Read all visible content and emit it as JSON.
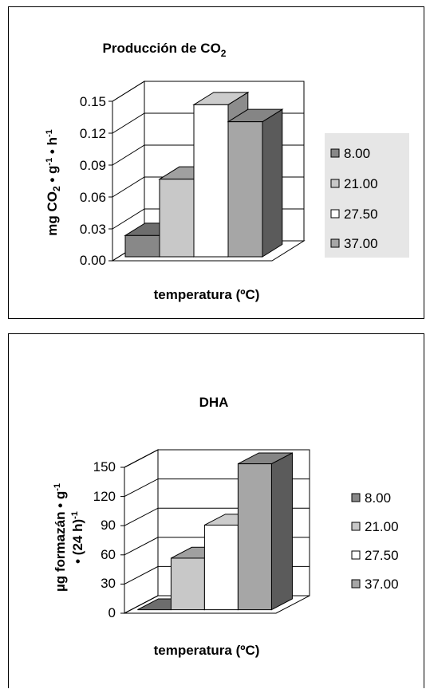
{
  "colors": {
    "c8": "#888888",
    "c21": "#c8c8c8",
    "c275": "#ffffff",
    "c37": "#a6a6a6",
    "legend_bg": "#e6e6e6"
  },
  "charts": [
    {
      "title_main": "Producción de CO",
      "title_sub": "2",
      "ylabel": {
        "a": "mg CO",
        "b": "2",
        "c": " • g",
        "d": "-1",
        "e": " • h",
        "f": "-1"
      },
      "xlabel": "temperatura (ºC)",
      "yticks": [
        "0.15",
        "0.12",
        "0.09",
        "0.06",
        "0.03",
        "0.00"
      ],
      "legend": [
        "8.00",
        "21.00",
        "27.50",
        "37.00"
      ]
    },
    {
      "title_main": "DHA",
      "ylabel": {
        "a": "µg formazán •   g",
        "b": "-1",
        "c": "• (24 h)",
        "d": "-1"
      },
      "xlabel": "temperatura (ºC)",
      "yticks": [
        "150",
        "120",
        "90",
        "60",
        "30",
        "0"
      ],
      "legend": [
        "8.00",
        "21.00",
        "27.50",
        "37.00"
      ]
    }
  ],
  "chart_data": [
    {
      "type": "bar",
      "title": "Producción de CO2",
      "xlabel": "temperatura (ºC)",
      "ylabel": "mg CO2 • g-1 • h-1",
      "ylim": [
        0,
        0.15
      ],
      "series": [
        {
          "name": "8.00",
          "values": [
            0.02
          ]
        },
        {
          "name": "21.00",
          "values": [
            0.073
          ]
        },
        {
          "name": "27.50",
          "values": [
            0.143
          ]
        },
        {
          "name": "37.00",
          "values": [
            0.127
          ]
        }
      ],
      "grid": true,
      "legend_position": "right"
    },
    {
      "type": "bar",
      "title": "DHA",
      "xlabel": "temperatura (ºC)",
      "ylabel": "µg formazán • g-1 • (24 h)-1",
      "ylim": [
        0,
        150
      ],
      "series": [
        {
          "name": "8.00",
          "values": [
            0
          ]
        },
        {
          "name": "21.00",
          "values": [
            53
          ]
        },
        {
          "name": "27.50",
          "values": [
            87
          ]
        },
        {
          "name": "37.00",
          "values": [
            150
          ]
        }
      ],
      "grid": true,
      "legend_position": "right"
    }
  ]
}
